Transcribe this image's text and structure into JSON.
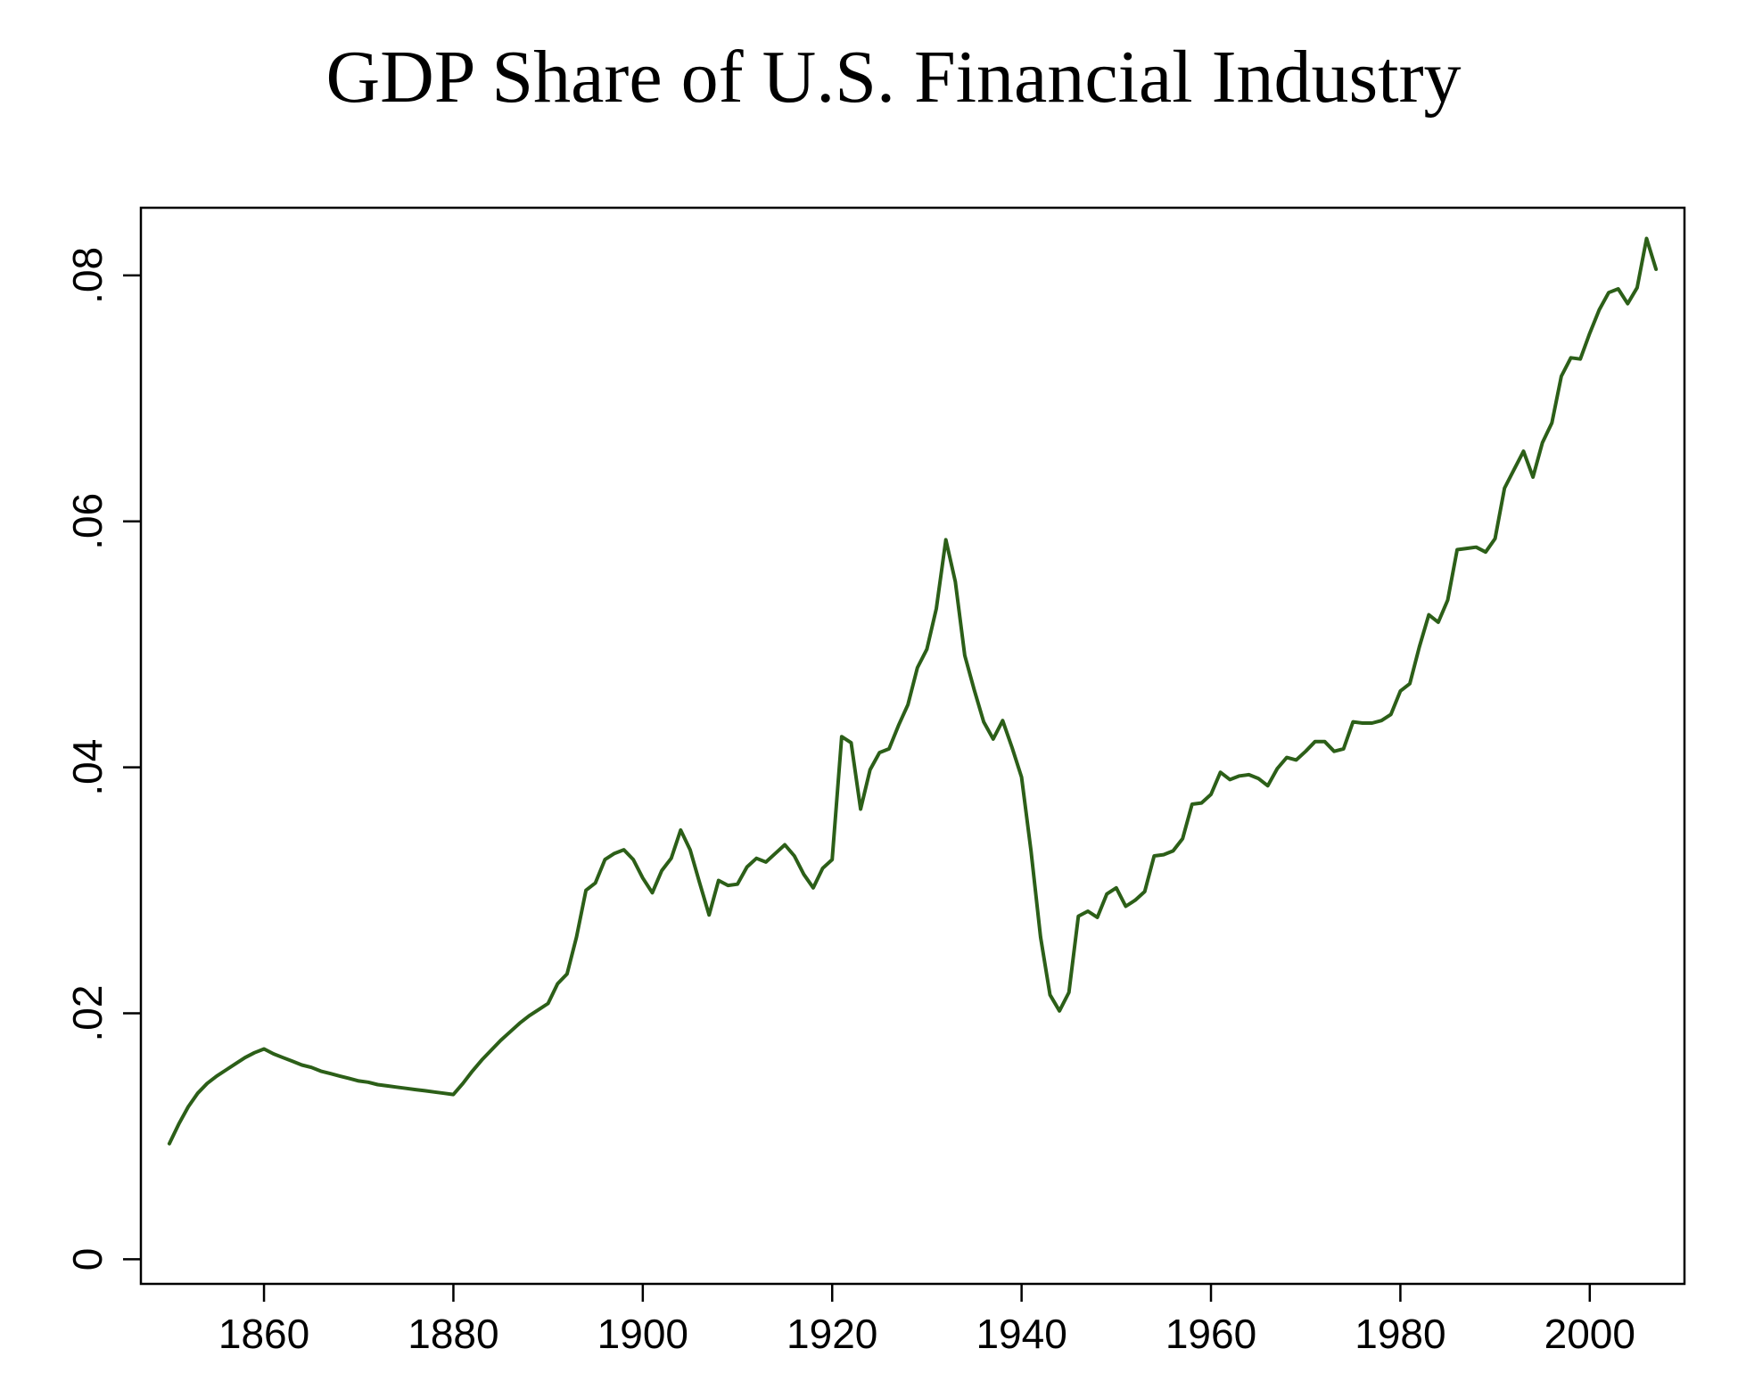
{
  "chart_data": {
    "type": "line",
    "title": "GDP Share of U.S. Financial Industry",
    "xlabel": "",
    "ylabel": "",
    "xlim": [
      1847,
      2010
    ],
    "ylim": [
      -0.002,
      0.0855
    ],
    "x_ticks": [
      1860,
      1880,
      1900,
      1920,
      1940,
      1960,
      1980,
      2000
    ],
    "x_tick_labels": [
      "1860",
      "1880",
      "1900",
      "1920",
      "1940",
      "1960",
      "1980",
      "2000"
    ],
    "y_ticks": [
      0,
      0.02,
      0.04,
      0.06,
      0.08
    ],
    "y_tick_labels": [
      "0",
      ".02",
      ".04",
      ".06",
      ".08"
    ],
    "grid": false,
    "legend": "none",
    "line_color": "#2c5f18",
    "series": [
      {
        "x": [
          1850,
          1851,
          1852,
          1853,
          1854,
          1855,
          1856,
          1857,
          1858,
          1859,
          1860,
          1861,
          1862,
          1863,
          1864,
          1865,
          1866,
          1867,
          1868,
          1869,
          1870,
          1871,
          1872,
          1873,
          1874,
          1875,
          1876,
          1877,
          1878,
          1879,
          1880,
          1881,
          1882,
          1883,
          1884,
          1885,
          1886,
          1887,
          1888,
          1889,
          1890,
          1891,
          1892,
          1893,
          1894,
          1895,
          1896,
          1897,
          1898,
          1899,
          1900,
          1901,
          1902,
          1903,
          1904,
          1905,
          1906,
          1907,
          1908,
          1909,
          1910,
          1911,
          1912,
          1913,
          1914,
          1915,
          1916,
          1917,
          1918,
          1919,
          1920,
          1921,
          1922,
          1923,
          1924,
          1925,
          1926,
          1927,
          1928,
          1929,
          1930,
          1931,
          1932,
          1933,
          1934,
          1935,
          1936,
          1937,
          1938,
          1939,
          1940,
          1941,
          1942,
          1943,
          1944,
          1945,
          1946,
          1947,
          1948,
          1949,
          1950,
          1951,
          1952,
          1953,
          1954,
          1955,
          1956,
          1957,
          1958,
          1959,
          1960,
          1961,
          1962,
          1963,
          1964,
          1965,
          1966,
          1967,
          1968,
          1969,
          1970,
          1971,
          1972,
          1973,
          1974,
          1975,
          1976,
          1977,
          1978,
          1979,
          1980,
          1981,
          1982,
          1983,
          1984,
          1985,
          1986,
          1987,
          1988,
          1989,
          1990,
          1991,
          1992,
          1993,
          1994,
          1995,
          1996,
          1997,
          1998,
          1999,
          2000,
          2001,
          2002,
          2003,
          2004,
          2005,
          2006,
          2007
        ],
        "values": [
          0.0094,
          0.011,
          0.0124,
          0.0135,
          0.0143,
          0.0149,
          0.0154,
          0.0159,
          0.0164,
          0.0168,
          0.0171,
          0.0167,
          0.0164,
          0.0161,
          0.0158,
          0.0156,
          0.0153,
          0.0151,
          0.0149,
          0.0147,
          0.0145,
          0.0144,
          0.0142,
          0.0141,
          0.014,
          0.0139,
          0.0138,
          0.0137,
          0.0136,
          0.0135,
          0.0134,
          0.0143,
          0.0153,
          0.0162,
          0.017,
          0.0178,
          0.0185,
          0.0192,
          0.0198,
          0.0203,
          0.0208,
          0.0224,
          0.0232,
          0.0262,
          0.03,
          0.0306,
          0.0325,
          0.033,
          0.0333,
          0.0325,
          0.031,
          0.0298,
          0.0316,
          0.0326,
          0.0349,
          0.0333,
          0.0306,
          0.028,
          0.0308,
          0.0304,
          0.0305,
          0.0319,
          0.0326,
          0.0323,
          0.033,
          0.0337,
          0.0328,
          0.0313,
          0.0302,
          0.0318,
          0.0325,
          0.0425,
          0.042,
          0.0366,
          0.0398,
          0.0412,
          0.0415,
          0.0434,
          0.0451,
          0.0481,
          0.0496,
          0.0529,
          0.0585,
          0.0551,
          0.0491,
          0.0463,
          0.0437,
          0.0423,
          0.0438,
          0.0416,
          0.0392,
          0.0332,
          0.0262,
          0.0215,
          0.0202,
          0.0217,
          0.0279,
          0.0283,
          0.0278,
          0.0297,
          0.0302,
          0.0287,
          0.0292,
          0.0299,
          0.0328,
          0.0329,
          0.0332,
          0.0342,
          0.037,
          0.0371,
          0.0378,
          0.0396,
          0.039,
          0.0393,
          0.0394,
          0.0391,
          0.0385,
          0.0399,
          0.0408,
          0.0406,
          0.0413,
          0.0421,
          0.0421,
          0.0413,
          0.0415,
          0.0437,
          0.0436,
          0.0436,
          0.0438,
          0.0443,
          0.0462,
          0.0468,
          0.0498,
          0.0524,
          0.0518,
          0.0536,
          0.0577,
          0.0578,
          0.0579,
          0.0575,
          0.0586,
          0.0627,
          0.0642,
          0.0657,
          0.0636,
          0.0664,
          0.068,
          0.0718,
          0.0733,
          0.0732,
          0.0753,
          0.0772,
          0.0786,
          0.0789,
          0.0777,
          0.079,
          0.083,
          0.0805
        ]
      }
    ]
  }
}
